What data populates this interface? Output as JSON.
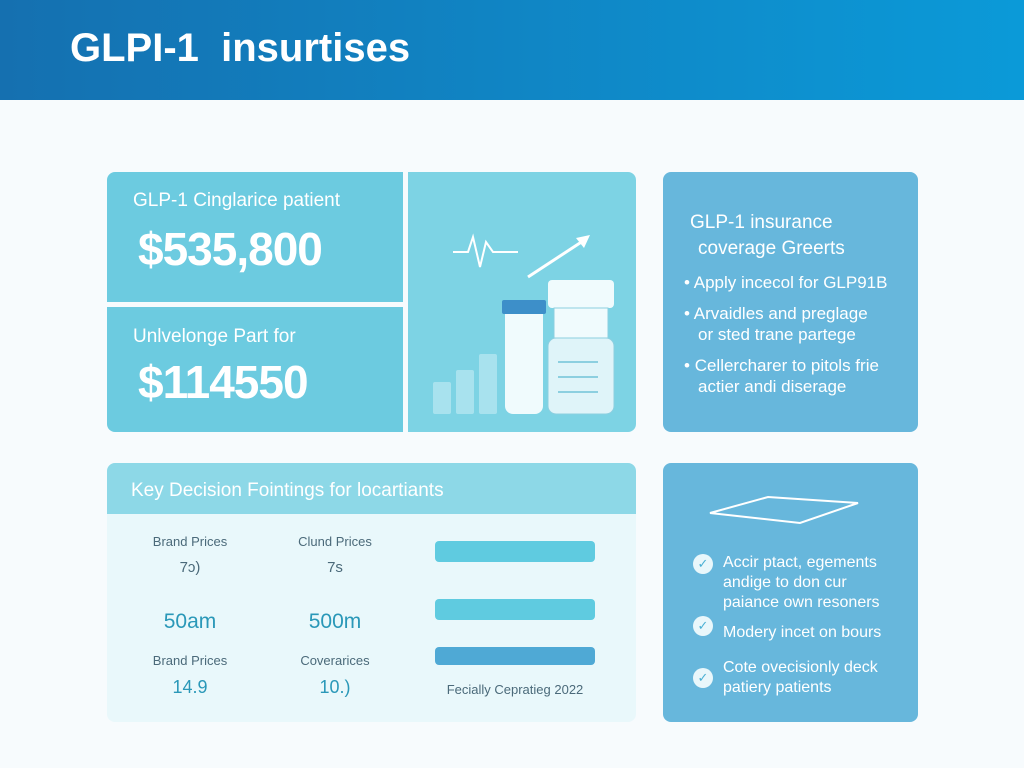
{
  "header": {
    "title": "GLPI-1  insurtises"
  },
  "summary": {
    "items": [
      {
        "label": "GLP-1 Cinglarice patient",
        "value": "$535,800"
      },
      {
        "label": "Unlvelonge Part for",
        "value": "$114550"
      }
    ]
  },
  "coverage": {
    "title": [
      "GLP-1 insurance",
      "coverage Greerts"
    ],
    "bullets": [
      [
        "Apply incecol for GLP91B"
      ],
      [
        "Arvaidles and preglage",
        "or sted trane partege"
      ],
      [
        "Cellercharer to pitols frie",
        "actier andi diserage"
      ]
    ]
  },
  "decision": {
    "title": "Key Decision Fointings for locartiants",
    "columns": [
      {
        "label": "Brand Prices",
        "sub": "7ɔ)",
        "value": "50am",
        "label2": "Brand Prices",
        "value2": "14.9"
      },
      {
        "label": "Clund Prices",
        "sub": "7s",
        "value": "500m",
        "label2": "Coverarices",
        "value2": "10.)"
      }
    ],
    "footnote": "Fecially Cepratieg 2022"
  },
  "checklist": {
    "items": [
      [
        "Accir ptact, egements",
        "andige to don cur",
        "paiance own resoners"
      ],
      [
        "Modery incet on bours"
      ],
      [
        "Cote ovecisionly deck",
        "patiery patients"
      ]
    ]
  }
}
